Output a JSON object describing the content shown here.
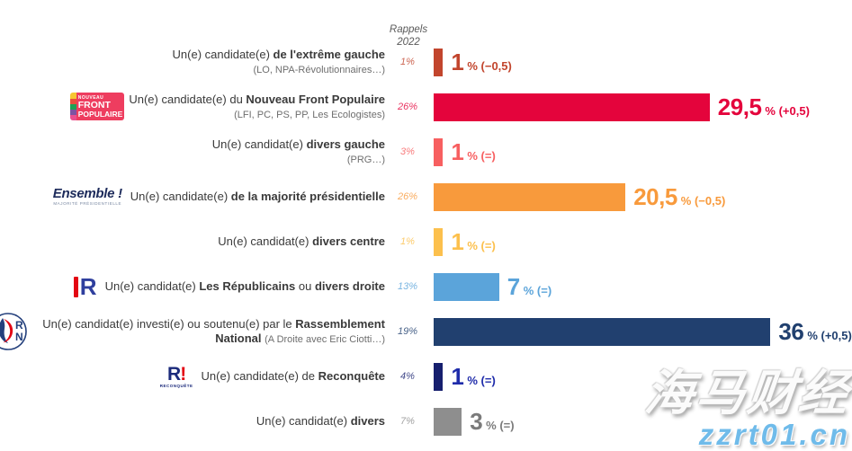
{
  "header": {
    "line1": "Rappels",
    "line2": "2022"
  },
  "watermark": {
    "line1": "海马财经",
    "line2": "zzrt01.cn",
    "color": "#6fbbea"
  },
  "logos": {
    "nfp": {
      "top": "NOUVEAU",
      "line1": "FRONT",
      "line2": "POPULAIRE",
      "bg": "#ee3d5f",
      "stripes": [
        "#f7c631",
        "#e94f3c",
        "#1fa055",
        "#7d53a2",
        "#e94f90"
      ]
    },
    "ensemble": {
      "line1": "Ensemble !",
      "line2": "MAJORITÉ PRÉSIDENTIELLE",
      "color": "#1d2b5b",
      "sub_color": "#7786a0"
    },
    "lr": {
      "letter": "R",
      "bar_color": "#e30613",
      "letter_color": "#2f3f9e"
    },
    "rn": {
      "letters": "RN",
      "ring_color": "#24407c",
      "flame_blue": "#24407c",
      "flame_red": "#e30613"
    },
    "reconquete": {
      "letter": "R",
      "bang": "!",
      "sub": "RECONQUÊTE",
      "color": "#1b2a7b",
      "bang_color": "#e30613"
    }
  },
  "chart_data": {
    "type": "bar",
    "orientation": "horizontal",
    "value_unit": "%",
    "rappels_header": "Rappels 2022",
    "x_max_percent": 36,
    "grid": false,
    "rows": [
      {
        "id": "extreme-gauche",
        "logo": null,
        "label_lines": [
          [
            {
              "t": "Un(e) candidate(e) "
            },
            {
              "t": "de l'extrême gauche",
              "b": true
            }
          ],
          [
            {
              "t": "(LO, NPA-Révolutionnaires…)",
              "s": true
            }
          ]
        ],
        "rappel_2022": "1%",
        "rappel_value": 1,
        "value": 1,
        "value_label": "1",
        "change_label": "% (−0,5)",
        "color": "#c2452d"
      },
      {
        "id": "nouveau-front-populaire",
        "logo": "nfp",
        "label_lines": [
          [
            {
              "t": "Un(e) candidate(e) du "
            },
            {
              "t": "Nouveau Front Populaire",
              "b": true
            }
          ],
          [
            {
              "t": "(LFI, PC, PS, PP, Les Ecologistes)",
              "s": true
            }
          ]
        ],
        "rappel_2022": "26%",
        "rappel_value": 26,
        "value": 29.5,
        "value_label": "29,5",
        "change_label": "% (+0,5)",
        "color": "#e4043c"
      },
      {
        "id": "divers-gauche",
        "logo": null,
        "label_lines": [
          [
            {
              "t": "Un(e) candidat(e) "
            },
            {
              "t": "divers gauche",
              "b": true
            }
          ],
          [
            {
              "t": "(PRG…)",
              "s": true
            }
          ]
        ],
        "rappel_2022": "3%",
        "rappel_value": 3,
        "value": 1,
        "value_label": "1",
        "change_label": "% (=)",
        "color": "#f75f60"
      },
      {
        "id": "majorite-presidentielle",
        "logo": "ensemble",
        "label_lines": [
          [
            {
              "t": "Un(e) candidate(e) "
            },
            {
              "t": "de la majorité présidentielle",
              "b": true
            }
          ]
        ],
        "rappel_2022": "26%",
        "rappel_value": 26,
        "value": 20.5,
        "value_label": "20,5",
        "change_label": "% (−0,5)",
        "color": "#f89a3c"
      },
      {
        "id": "divers-centre",
        "logo": null,
        "label_lines": [
          [
            {
              "t": "Un(e) candidat(e) "
            },
            {
              "t": "divers centre",
              "b": true
            }
          ]
        ],
        "rappel_2022": "1%",
        "rappel_value": 1,
        "value": 1,
        "value_label": "1",
        "change_label": "% (=)",
        "color": "#fcc04d"
      },
      {
        "id": "les-republicains",
        "logo": "lr",
        "label_lines": [
          [
            {
              "t": "Un(e) candidat(e) "
            },
            {
              "t": "Les Républicains",
              "b": true
            },
            {
              "t": " ou "
            },
            {
              "t": "divers droite",
              "b": true
            }
          ]
        ],
        "rappel_2022": "13%",
        "rappel_value": 13,
        "value": 7,
        "value_label": "7",
        "change_label": "% (=)",
        "color": "#5ba4da"
      },
      {
        "id": "rassemblement-national",
        "logo": "rn",
        "label_lines": [
          [
            {
              "t": "Un(e) candidat(e) investi(e) ou soutenu(e) par le "
            },
            {
              "t": "Rassemblement National",
              "b": true
            },
            {
              "t": " "
            },
            {
              "t": "(A Droite avec Eric Ciotti…)",
              "s": true
            }
          ]
        ],
        "rappel_2022": "19%",
        "rappel_value": 19,
        "value": 36,
        "value_label": "36",
        "change_label": "% (+0,5)",
        "color": "#21406f"
      },
      {
        "id": "reconquete",
        "logo": "reconquete",
        "label_lines": [
          [
            {
              "t": "Un(e) candidate(e) de "
            },
            {
              "t": "Reconquête",
              "b": true
            }
          ]
        ],
        "rappel_2022": "4%",
        "rappel_value": 4,
        "value": 1,
        "value_label": "1",
        "change_label": "% (=)",
        "color": "#161f6e",
        "value_color": "#1f2caa"
      },
      {
        "id": "divers",
        "logo": null,
        "label_lines": [
          [
            {
              "t": "Un(e) candidat(e) "
            },
            {
              "t": "divers",
              "b": true
            }
          ]
        ],
        "rappel_2022": "7%",
        "rappel_value": 7,
        "value": 3,
        "value_label": "3",
        "change_label": "% (=)",
        "color": "#8e8e8e",
        "value_color": "#7b7b7b"
      }
    ]
  }
}
